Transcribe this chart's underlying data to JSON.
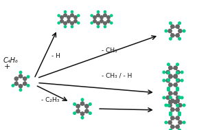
{
  "atom_c_color": "#666666",
  "atom_h_color": "#00cc88",
  "bond_color": "#555555",
  "arrow_color": "#111111",
  "text_color": "#111111",
  "label_reactant": "C₄H₆",
  "label_plus": "+",
  "label_minusH": "- H",
  "label_minusCH3": "- CH₃",
  "label_minusCH3H": "- CH₃ / - H",
  "label_minusC2H3": "- C₂H₃",
  "figsize": [
    2.87,
    1.89
  ],
  "dpi": 100
}
